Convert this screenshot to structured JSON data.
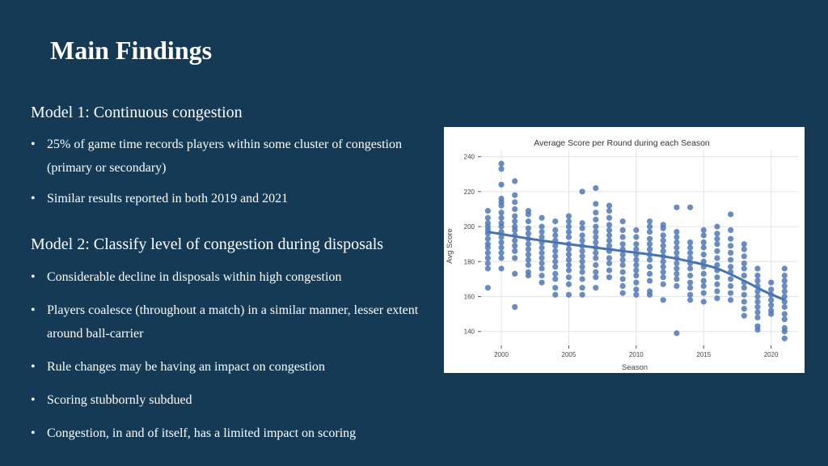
{
  "slide": {
    "title": "Main Findings",
    "model1": {
      "heading": "Model 1: Continuous congestion",
      "bullets": [
        "25% of game time records players within some cluster of congestion (primary or secondary)",
        "Similar results reported in both 2019 and 2021"
      ]
    },
    "model2": {
      "heading": "Model 2: Classify level of congestion during disposals",
      "bullets": [
        "Considerable decline in disposals within high congestion",
        "Players coalesce (throughout a match) in a similar manner, lesser extent around ball-carrier",
        "Rule changes may be having an impact on congestion",
        "Scoring stubbornly subdued",
        "Congestion, in and of itself, has a limited impact on scoring"
      ]
    }
  },
  "colors": {
    "background": "#143a56",
    "point": "#4f78b8",
    "trend": "#4a74b0",
    "grid": "#e3e3e3"
  },
  "chart_data": {
    "type": "scatter",
    "title": "Average Score per Round during each Season",
    "xlabel": "Season",
    "ylabel": "Avg Score",
    "xlim": [
      1998.5,
      2022
    ],
    "ylim": [
      132,
      244
    ],
    "xticks": [
      2000,
      2005,
      2010,
      2015,
      2020
    ],
    "yticks": [
      140,
      160,
      180,
      200,
      220,
      240
    ],
    "grid": true,
    "trendline": true,
    "seasons": [
      {
        "x": 1999,
        "y": [
          209,
          205,
          202,
          200,
          198,
          196,
          193,
          190,
          188,
          185,
          182,
          179,
          176,
          165
        ]
      },
      {
        "x": 2000,
        "y": [
          236,
          233,
          224,
          216,
          214,
          212,
          208,
          205,
          202,
          200,
          197,
          194,
          191,
          188,
          185,
          182,
          176
        ]
      },
      {
        "x": 2001,
        "y": [
          226,
          218,
          214,
          210,
          206,
          203,
          200,
          198,
          195,
          192,
          189,
          186,
          182,
          173,
          154
        ]
      },
      {
        "x": 2002,
        "y": [
          209,
          207,
          203,
          199,
          196,
          193,
          190,
          187,
          184,
          181,
          178,
          174,
          172
        ]
      },
      {
        "x": 2003,
        "y": [
          205,
          200,
          197,
          194,
          191,
          188,
          185,
          182,
          179,
          176,
          172,
          168
        ]
      },
      {
        "x": 2004,
        "y": [
          203,
          198,
          195,
          192,
          189,
          186,
          183,
          180,
          177,
          173,
          170,
          165,
          161
        ]
      },
      {
        "x": 2005,
        "y": [
          206,
          203,
          200,
          197,
          194,
          190,
          187,
          184,
          181,
          178,
          175,
          171,
          167,
          161
        ]
      },
      {
        "x": 2006,
        "y": [
          220,
          202,
          199,
          195,
          192,
          189,
          186,
          183,
          180,
          177,
          174,
          170,
          165,
          161
        ]
      },
      {
        "x": 2007,
        "y": [
          222,
          213,
          208,
          204,
          200,
          197,
          194,
          191,
          188,
          185,
          182,
          178,
          174,
          171,
          165
        ]
      },
      {
        "x": 2008,
        "y": [
          212,
          209,
          205,
          201,
          198,
          195,
          192,
          189,
          186,
          182,
          179,
          175,
          171
        ]
      },
      {
        "x": 2009,
        "y": [
          203,
          198,
          194,
          190,
          187,
          184,
          181,
          178,
          174,
          170,
          166,
          162
        ]
      },
      {
        "x": 2010,
        "y": [
          198,
          194,
          190,
          187,
          184,
          181,
          178,
          175,
          172,
          168,
          164,
          161
        ]
      },
      {
        "x": 2011,
        "y": [
          203,
          200,
          197,
          193,
          190,
          187,
          184,
          181,
          177,
          173,
          169,
          163,
          161
        ]
      },
      {
        "x": 2012,
        "y": [
          201,
          199,
          195,
          192,
          189,
          186,
          183,
          180,
          177,
          174,
          171,
          167,
          158
        ]
      },
      {
        "x": 2013,
        "y": [
          211,
          197,
          194,
          191,
          188,
          185,
          182,
          179,
          176,
          173,
          170,
          166,
          139
        ]
      },
      {
        "x": 2014,
        "y": [
          211,
          191,
          188,
          185,
          182,
          179,
          176,
          172,
          168,
          165,
          161,
          158
        ]
      },
      {
        "x": 2015,
        "y": [
          198,
          195,
          191,
          188,
          184,
          180,
          177,
          173,
          169,
          166,
          162,
          157
        ]
      },
      {
        "x": 2016,
        "y": [
          200,
          196,
          193,
          190,
          186,
          182,
          178,
          175,
          171,
          167,
          163,
          159
        ]
      },
      {
        "x": 2017,
        "y": [
          207,
          198,
          193,
          189,
          185,
          181,
          177,
          174,
          170,
          166,
          162,
          158
        ]
      },
      {
        "x": 2018,
        "y": [
          190,
          187,
          183,
          179,
          176,
          172,
          168,
          165,
          161,
          157,
          153,
          149
        ]
      },
      {
        "x": 2019,
        "y": [
          176,
          172,
          169,
          166,
          163,
          160,
          157,
          154,
          151,
          148,
          143,
          141
        ]
      },
      {
        "x": 2020,
        "y": [
          168,
          164,
          161,
          158,
          155,
          152,
          150
        ]
      },
      {
        "x": 2021,
        "y": [
          176,
          172,
          169,
          166,
          163,
          160,
          157,
          154,
          150,
          147,
          142,
          140,
          136
        ]
      }
    ],
    "trend": [
      {
        "x": 1999,
        "y": 197
      },
      {
        "x": 2003,
        "y": 192
      },
      {
        "x": 2008,
        "y": 187
      },
      {
        "x": 2012,
        "y": 183
      },
      {
        "x": 2014,
        "y": 180
      },
      {
        "x": 2016,
        "y": 176
      },
      {
        "x": 2018,
        "y": 169
      },
      {
        "x": 2019.5,
        "y": 163
      },
      {
        "x": 2021,
        "y": 158
      }
    ]
  }
}
